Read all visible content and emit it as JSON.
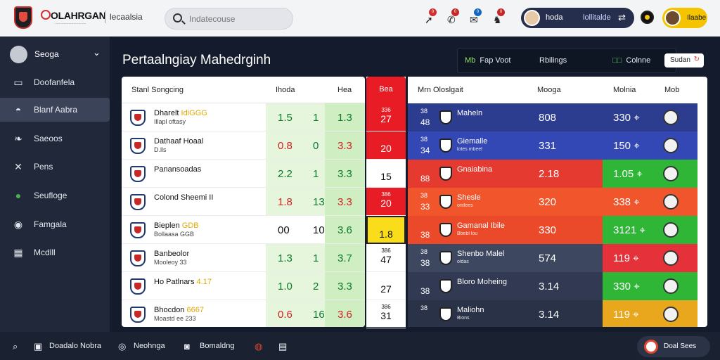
{
  "topbar": {
    "brand": "OLAHRGAN",
    "brand_sub": "................................",
    "crumb": "lecaalsia",
    "search_placeholder": "Indatecouse",
    "icons": [
      {
        "name": "bell-icon",
        "badge": "0",
        "badge_color": "#d32f2f"
      },
      {
        "name": "phone-icon",
        "badge": "0",
        "badge_color": "#c62828"
      },
      {
        "name": "message-icon",
        "badge": "0",
        "badge_color": "#1565c0"
      },
      {
        "name": "cart-icon",
        "badge": "0",
        "badge_color": "#c62828"
      }
    ],
    "user_name": "hoda",
    "user_sub": "lollitalde",
    "wallet_label": "Ilaabe"
  },
  "sidebar": {
    "head": "Seoga",
    "items": [
      {
        "label": "Doofanfela",
        "icon": "monitor-icon",
        "glyph": "▭"
      },
      {
        "label": "Blanf Aabra",
        "icon": "trophy-icon",
        "glyph": "◓"
      },
      {
        "label": "Saeoos",
        "icon": "leaf-icon",
        "glyph": "❧"
      },
      {
        "label": "Pens",
        "icon": "tools-icon",
        "glyph": "✕"
      },
      {
        "label": "Seufloge",
        "icon": "chat-icon",
        "glyph": "●"
      },
      {
        "label": "Famgala",
        "icon": "globe-icon",
        "glyph": "◉"
      },
      {
        "label": "Mcdlll",
        "icon": "grid-icon",
        "glyph": "▦"
      }
    ]
  },
  "main": {
    "title": "Pertaalngiay Mahedrginh",
    "filters": {
      "a_prefix": "Mb",
      "a_label": "Fap Voot",
      "b_label": "Rbilings",
      "c_prefix": "□□",
      "c_label": "Colnne",
      "d_label": "Sudan"
    }
  },
  "left_table": {
    "headers": [
      "Stanl Songcing",
      "Ihoda",
      "Hea"
    ],
    "rows": [
      {
        "n1": "Dharelt ",
        "n1b": "IdiGGG",
        "n2": "Illapl oftasy",
        "v1": "1.5",
        "v2": "1",
        "v3": "1.3",
        "style": ""
      },
      {
        "n1": "Dathaaf Hoaal",
        "n1b": "",
        "n2": "D.lls",
        "v1": "0.8",
        "v2": "0",
        "v3": "3.3",
        "style": "redplain"
      },
      {
        "n1": "Panansoadas",
        "n1b": "",
        "n2": "",
        "v1": "2.2",
        "v2": "1",
        "v3": "3.3",
        "style": ""
      },
      {
        "n1": "Colond Sheemi II",
        "n1b": "",
        "n2": "",
        "v1": "1.8",
        "v2": "13",
        "v3": "3.3",
        "style": "red"
      },
      {
        "n1": "Bieplen ",
        "n1b": "GDB",
        "n2": "Bollaasa GGB",
        "v1": "00",
        "v2": "10",
        "v3": "3.6",
        "style": "plainmid"
      },
      {
        "n1": "Banbeolor",
        "n1b": "",
        "n2": "Mooleoy 33",
        "v1": "1.3",
        "v2": "1",
        "v3": "3.7",
        "style": ""
      },
      {
        "n1": "Ho   Patlnars ",
        "n1b": "4.17",
        "n2": "",
        "v1": "1.0",
        "v2": "2",
        "v3": "3.3",
        "style": ""
      },
      {
        "n1": "Bhocdon ",
        "n1b": "6667",
        "n2": "Moastd ee 233",
        "v1": "0.6",
        "v2": "16",
        "v3": "3.6",
        "style": "redplain"
      }
    ]
  },
  "mid_col": {
    "header": "Bea",
    "cells": [
      {
        "top": "336",
        "main": "27",
        "style": "red"
      },
      {
        "top": "",
        "main": "20",
        "style": "red"
      },
      {
        "top": "",
        "main": "15",
        "style": ""
      },
      {
        "top": "386",
        "main": "20",
        "style": "red"
      },
      {
        "top": "",
        "main": "1.8",
        "style": "yel"
      },
      {
        "top": "386",
        "main": "47",
        "style": ""
      },
      {
        "top": "",
        "main": "27",
        "style": ""
      },
      {
        "top": "386",
        "main": "31",
        "style": ""
      }
    ]
  },
  "right_table": {
    "headers": [
      "Mrn Oloslgait",
      "Mooga",
      "Molnia",
      "Mob"
    ],
    "rows": [
      {
        "rk": "38",
        "rk2": "48",
        "nm": "Maheln",
        "sb": "",
        "p1": "808",
        "p2": "330 ⌖",
        "bg": "#2c3d8f",
        "p2bg": "#2c3d8f"
      },
      {
        "rk": "38",
        "rk2": "34",
        "nm": "Giemalle",
        "sb": "lotes mbeel",
        "p1": "331",
        "p2": "150 ⌖",
        "bg": "#3347b5",
        "p2bg": "#3347b5"
      },
      {
        "rk": "",
        "rk2": "88",
        "nm": "Gnaiabina",
        "sb": "",
        "p1": "2.18",
        "p2": "1.05 ⌖",
        "bg": "#e53a30",
        "p2bg": "#2fb637"
      },
      {
        "rk": "38",
        "rk2": "33",
        "nm": "Shesle",
        "sb": "ontlees",
        "p1": "320",
        "p2": "338 ⌖",
        "bg": "#f0552c",
        "p2bg": "#f0552c"
      },
      {
        "rk": "",
        "rk2": "38",
        "nm": "Gamanal Ibile",
        "sb": "Bbebl lou",
        "p1": "330",
        "p2": "3121 ⌖",
        "bg": "#ea4a2a",
        "p2bg": "#2fb637"
      },
      {
        "rk": "38",
        "rk2": "38",
        "nm": "Shenbo Malel",
        "sb": "oldas",
        "p1": "574",
        "p2": "119 ⌖",
        "bg": "#3d4760",
        "p2bg": "#e5323a"
      },
      {
        "rk": "",
        "rk2": "38",
        "nm": "Bloro Moheing",
        "sb": "",
        "p1": "3.14",
        "p2": "330 ⌖",
        "bg": "#313a52",
        "p2bg": "#2fb637"
      },
      {
        "rk": "38",
        "rk2": "",
        "nm": "Maliohn",
        "sb": "Blons",
        "p1": "3.14",
        "p2": "119 ⌖",
        "bg": "#2a3248",
        "p2bg": "#e8a71d"
      }
    ]
  },
  "bottom": {
    "items": [
      "Doadalo Nobra",
      "Neohnga",
      "Bomaldng"
    ],
    "chat_label": "Doal Sees"
  }
}
